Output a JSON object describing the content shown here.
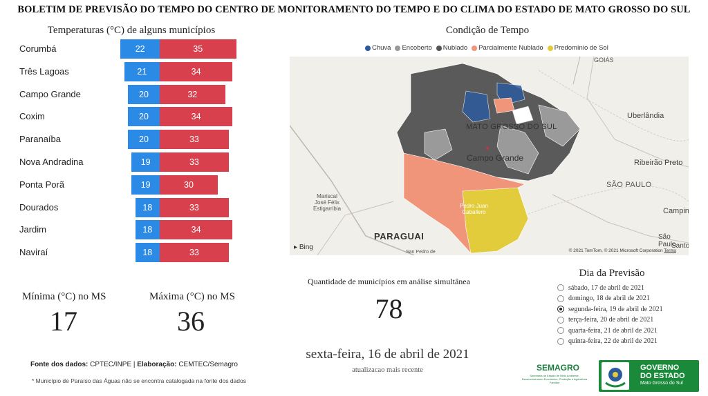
{
  "header": {
    "title": "BOLETIM DE PREVISÃO DO TEMPO DO CENTRO DE MONITORAMENTO DO TEMPO E DO CLIMA DO ESTADO DE MATO GROSSO DO SUL"
  },
  "temperatures": {
    "title": "Temperaturas (°C) de alguns municípios",
    "cities": [
      {
        "name": "Corumbá",
        "min": 22,
        "max": 35
      },
      {
        "name": "Três Lagoas",
        "min": 21,
        "max": 34
      },
      {
        "name": "Campo Grande",
        "min": 20,
        "max": 32
      },
      {
        "name": "Coxim",
        "min": 20,
        "max": 34
      },
      {
        "name": "Paranaíba",
        "min": 20,
        "max": 33
      },
      {
        "name": "Nova Andradina",
        "min": 19,
        "max": 33
      },
      {
        "name": "Ponta Porã",
        "min": 19,
        "max": 30
      },
      {
        "name": "Dourados",
        "min": 18,
        "max": 33
      },
      {
        "name": "Jardim",
        "min": 18,
        "max": 34
      },
      {
        "name": "Naviraí",
        "min": 18,
        "max": 33
      }
    ],
    "colors": {
      "min": "#2b8ae6",
      "max": "#d9404e"
    }
  },
  "stats": {
    "min_label": "Mínima (°C) no MS",
    "min_value": "17",
    "max_label": "Máxima (°C) no MS",
    "max_value": "36"
  },
  "footer": {
    "source_label": "Fonte dos dados:",
    "source_value": "CPTEC/INPE",
    "elab_label": "Elaboração:",
    "elab_value": "CEMTEC/Semagro",
    "note": "* Município de Paraíso das Águas não se encontra catalogada na fonte dos dados"
  },
  "map": {
    "title": "Condição de Tempo",
    "legend": [
      {
        "label": "Chuva",
        "color": "#2d5a9c"
      },
      {
        "label": "Encoberto",
        "color": "#9a9a9a"
      },
      {
        "label": "Nublado",
        "color": "#555555"
      },
      {
        "label": "Parcialmente Nublado",
        "color": "#f0957a"
      },
      {
        "label": "Predomínio de Sol",
        "color": "#e3cc3c"
      }
    ],
    "labels": {
      "state": "MATO GROSSO DO SUL",
      "capital": "Campo Grande",
      "goias": "GOIÁS",
      "uberlandia": "Uberlândia",
      "ribeirao": "Ribeirão Preto",
      "sao_paulo_state": "SÃO PAULO",
      "campinas": "Campin",
      "sao_paulo_city": "São Paulo",
      "santos": "Santo",
      "mariscal": "Mariscal\nJosé Félix\nEstigarribia",
      "pedro_juan": "Pedro Juan\nCaballero",
      "paraguai": "PARAGUAI",
      "san_pedro": "San Pedro de"
    },
    "bing": "Bing",
    "copyright": "© 2021 TomTom, © 2021 Microsoft Corporation",
    "terms": "Terms"
  },
  "analysis": {
    "label": "Quantidade de municípios em análise simultânea",
    "value": "78",
    "current_date": "sexta-feira, 16 de abril de 2021",
    "current_sub": "atualizacao mais recente"
  },
  "forecast": {
    "title": "Dia da Previsão",
    "days": [
      {
        "label": "sábado, 17 de abril de 2021",
        "selected": false
      },
      {
        "label": "domingo, 18 de abril de 2021",
        "selected": false
      },
      {
        "label": "segunda-feira, 19 de abril de 2021",
        "selected": true
      },
      {
        "label": "terça-feira, 20 de abril de 2021",
        "selected": false
      },
      {
        "label": "quarta-feira, 21 de abril de 2021",
        "selected": false
      },
      {
        "label": "quinta-feira, 22 de abril de 2021",
        "selected": false
      }
    ]
  },
  "logos": {
    "semagro": "SEMAGRO",
    "semagro_sub": "Secretaria de Estado de Meio Ambiente, Desenvolvimento Econômico, Produção e Agricultura Familiar",
    "gov_line1": "GOVERNO",
    "gov_line2": "DO ESTADO",
    "gov_sub": "Mato Grosso do Sul"
  }
}
